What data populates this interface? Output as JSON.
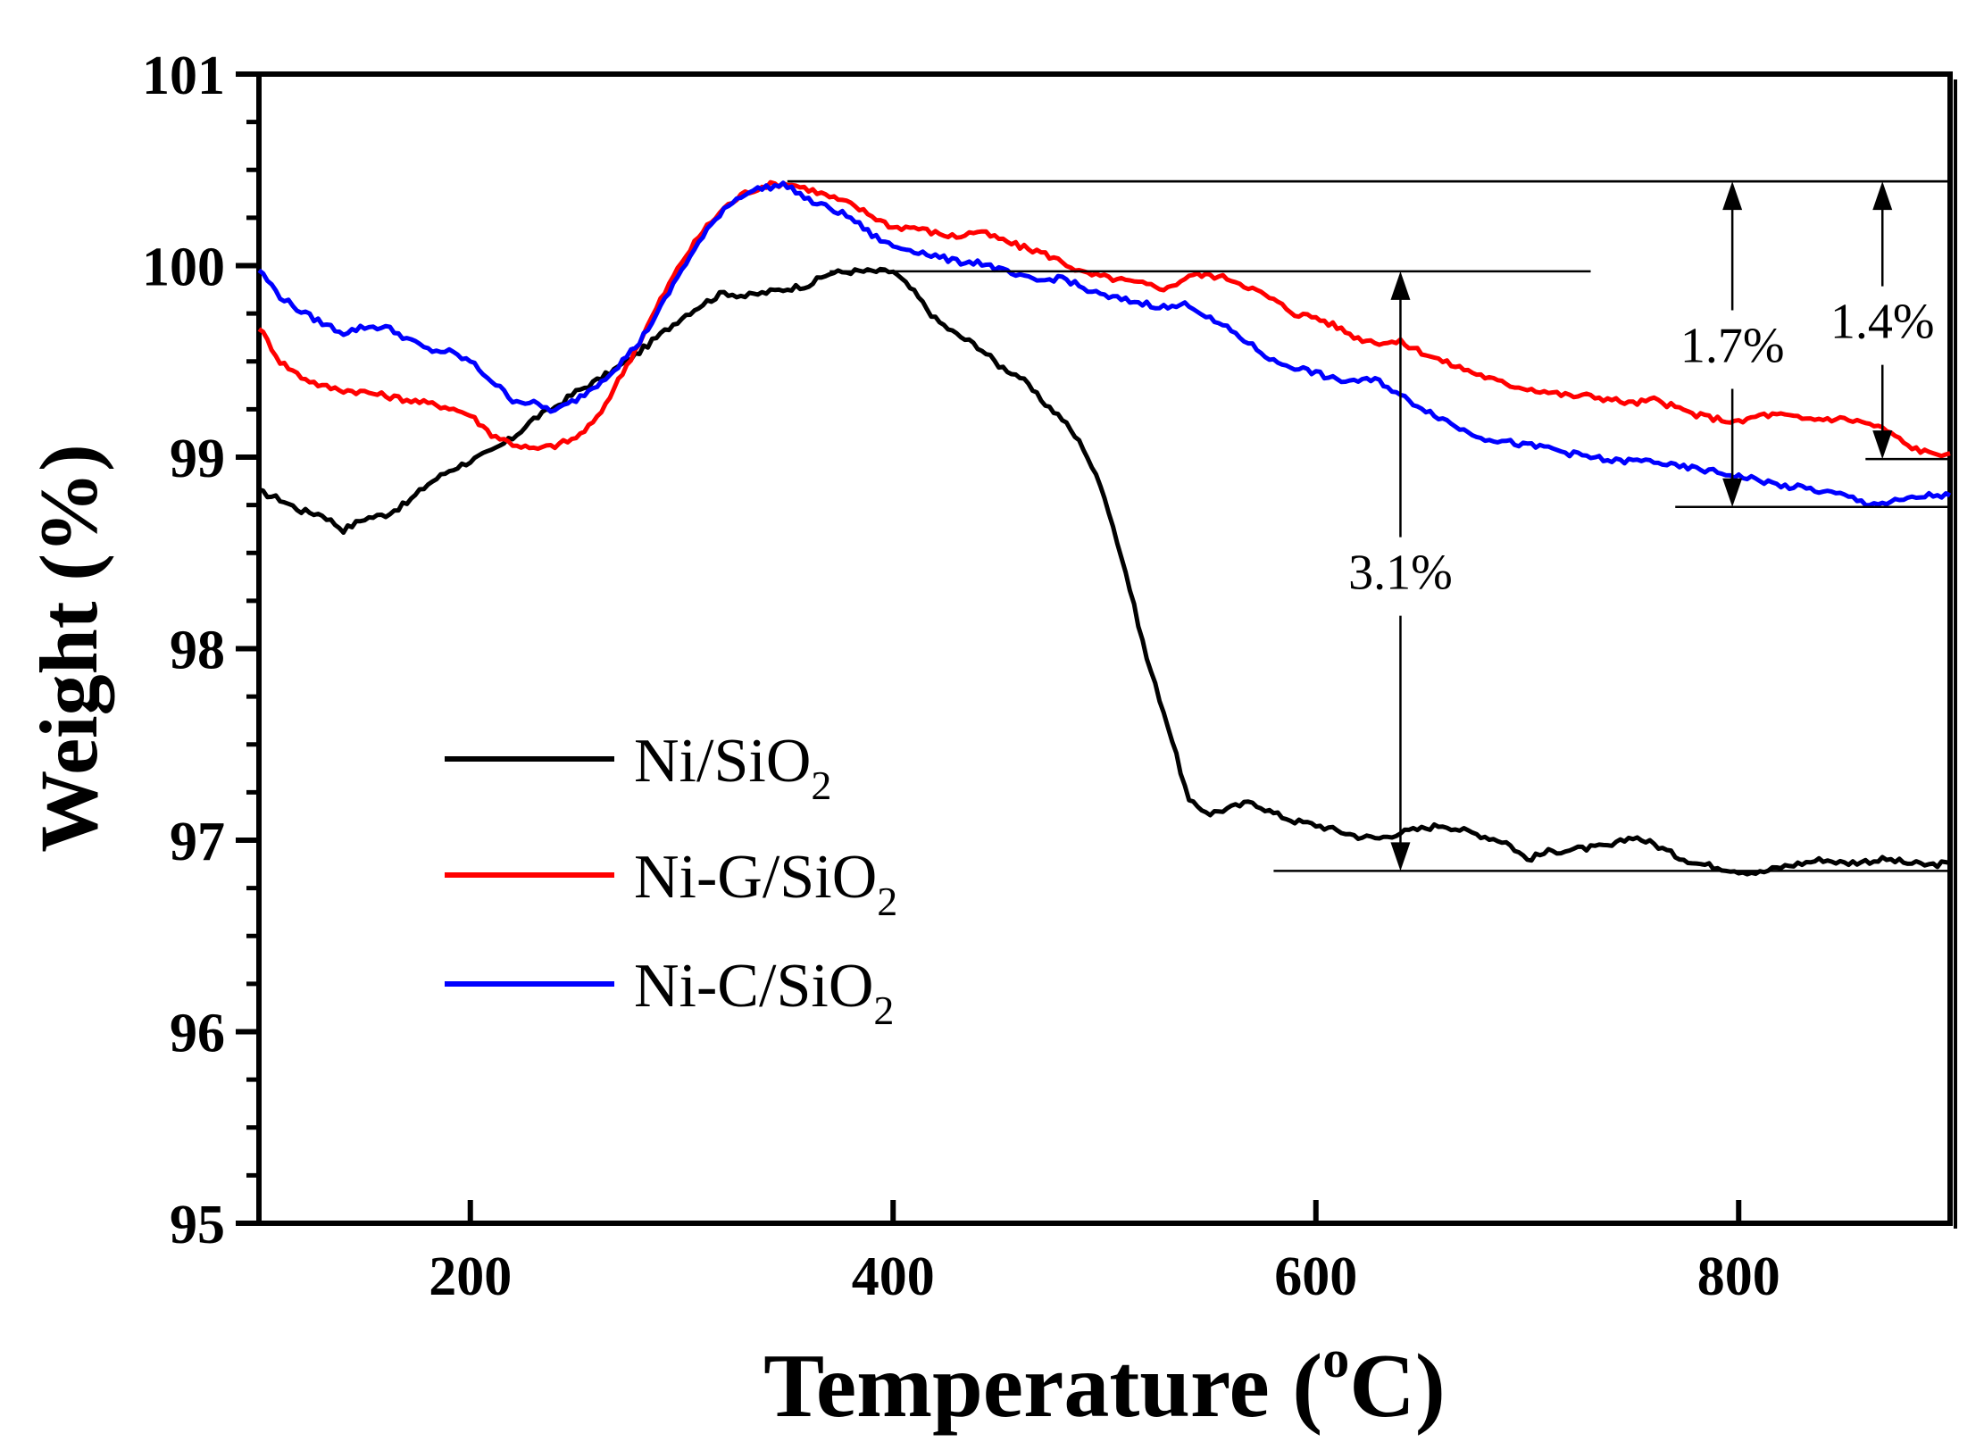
{
  "chart_data": {
    "type": "line",
    "title": "",
    "xlabel": "Temperature (",
    "xlabel_sup": "o",
    "xlabel_unit": "C)",
    "ylabel": "Weight (%)",
    "xlim": [
      100,
      900
    ],
    "ylim": [
      95,
      101
    ],
    "x_ticks": [
      200,
      400,
      600,
      800
    ],
    "x_tick_labels": [
      "200",
      "400",
      "600",
      "800"
    ],
    "y_ticks": [
      95,
      96,
      97,
      98,
      99,
      100,
      101
    ],
    "y_tick_labels": [
      "95",
      "96",
      "97",
      "98",
      "99",
      "100",
      "101"
    ],
    "grid": false,
    "legend_position": "lower-left",
    "series": [
      {
        "name": "Ni/SiO2",
        "label_main": "Ni/SiO",
        "label_sub": "2",
        "color": "#000000",
        "x": [
          100,
          110,
          120,
          130,
          140,
          150,
          160,
          170,
          180,
          190,
          200,
          210,
          220,
          230,
          240,
          250,
          260,
          270,
          280,
          290,
          300,
          310,
          320,
          330,
          340,
          350,
          360,
          370,
          380,
          390,
          400,
          410,
          420,
          430,
          440,
          450,
          460,
          470,
          480,
          490,
          500,
          510,
          520,
          530,
          540,
          550,
          560,
          570,
          580,
          590,
          600,
          610,
          620,
          630,
          640,
          650,
          660,
          670,
          680,
          690,
          700,
          710,
          720,
          730,
          740,
          750,
          760,
          770,
          780,
          790,
          800,
          810,
          820,
          830,
          840,
          850,
          860,
          870,
          880,
          890,
          900
        ],
        "y": [
          98.82,
          98.78,
          98.72,
          98.7,
          98.62,
          98.68,
          98.7,
          98.76,
          98.86,
          98.93,
          98.98,
          99.03,
          99.1,
          99.2,
          99.26,
          99.34,
          99.4,
          99.47,
          99.55,
          99.64,
          99.73,
          99.8,
          99.86,
          99.84,
          99.86,
          99.88,
          99.9,
          99.96,
          99.97,
          99.97,
          99.97,
          99.86,
          99.72,
          99.64,
          99.58,
          99.48,
          99.42,
          99.3,
          99.2,
          99.05,
          98.8,
          98.4,
          97.95,
          97.6,
          97.2,
          97.14,
          97.17,
          97.2,
          97.14,
          97.1,
          97.08,
          97.05,
          97.02,
          97.01,
          97.04,
          97.06,
          97.08,
          97.05,
          97.02,
          96.99,
          96.9,
          96.94,
          96.95,
          96.96,
          96.97,
          97.02,
          96.98,
          96.92,
          96.88,
          96.86,
          96.84,
          96.83,
          96.86,
          96.88,
          96.9,
          96.88,
          96.89,
          96.9,
          96.88,
          96.87,
          96.88
        ]
      },
      {
        "name": "Ni-G/SiO2",
        "label_main": "Ni-G/SiO",
        "label_sub": "2",
        "color": "#ff0000",
        "x": [
          100,
          110,
          120,
          130,
          140,
          150,
          160,
          170,
          180,
          190,
          200,
          210,
          220,
          230,
          240,
          250,
          260,
          270,
          280,
          290,
          300,
          310,
          320,
          330,
          340,
          350,
          360,
          370,
          380,
          390,
          400,
          410,
          420,
          430,
          440,
          450,
          460,
          470,
          480,
          490,
          500,
          510,
          520,
          530,
          540,
          550,
          560,
          570,
          580,
          590,
          600,
          610,
          620,
          630,
          640,
          650,
          660,
          670,
          680,
          690,
          700,
          710,
          720,
          730,
          740,
          750,
          760,
          770,
          780,
          790,
          800,
          810,
          820,
          830,
          840,
          850,
          860,
          870,
          880,
          890,
          900
        ],
        "y": [
          99.68,
          99.5,
          99.42,
          99.37,
          99.35,
          99.34,
          99.32,
          99.3,
          99.28,
          99.26,
          99.22,
          99.12,
          99.07,
          99.04,
          99.06,
          99.1,
          99.2,
          99.4,
          99.6,
          99.82,
          100.02,
          100.18,
          100.3,
          100.38,
          100.42,
          100.43,
          100.4,
          100.36,
          100.32,
          100.26,
          100.2,
          100.2,
          100.17,
          100.15,
          100.18,
          100.14,
          100.1,
          100.07,
          100.02,
          99.96,
          99.94,
          99.92,
          99.9,
          99.88,
          99.95,
          99.95,
          99.93,
          99.88,
          99.82,
          99.75,
          99.73,
          99.68,
          99.62,
          99.6,
          99.6,
          99.55,
          99.5,
          99.46,
          99.42,
          99.38,
          99.36,
          99.34,
          99.32,
          99.32,
          99.3,
          99.28,
          99.3,
          99.26,
          99.22,
          99.2,
          99.18,
          99.22,
          99.22,
          99.2,
          99.2,
          99.2,
          99.18,
          99.14,
          99.06,
          99.02,
          99.02
        ]
      },
      {
        "name": "Ni-C/SiO2",
        "label_main": "Ni-C/SiO",
        "label_sub": "2",
        "color": "#0000ff",
        "x": [
          100,
          110,
          120,
          130,
          140,
          150,
          160,
          170,
          180,
          190,
          200,
          210,
          220,
          230,
          240,
          250,
          260,
          270,
          280,
          290,
          300,
          310,
          320,
          330,
          340,
          350,
          360,
          370,
          380,
          390,
          400,
          410,
          420,
          430,
          440,
          450,
          460,
          470,
          480,
          490,
          500,
          510,
          520,
          530,
          540,
          550,
          560,
          570,
          580,
          590,
          600,
          610,
          620,
          630,
          640,
          650,
          660,
          670,
          680,
          690,
          700,
          710,
          720,
          730,
          740,
          750,
          760,
          770,
          780,
          790,
          800,
          810,
          820,
          830,
          840,
          850,
          860,
          870,
          880,
          890,
          900
        ],
        "y": [
          99.98,
          99.84,
          99.76,
          99.7,
          99.65,
          99.68,
          99.68,
          99.62,
          99.56,
          99.55,
          99.5,
          99.4,
          99.3,
          99.28,
          99.24,
          99.3,
          99.38,
          99.48,
          99.6,
          99.78,
          99.98,
          100.15,
          100.3,
          100.38,
          100.41,
          100.42,
          100.34,
          100.3,
          100.25,
          100.16,
          100.1,
          100.08,
          100.05,
          100.02,
          100.02,
          99.98,
          99.94,
          99.92,
          99.94,
          99.88,
          99.84,
          99.82,
          99.8,
          99.78,
          99.8,
          99.72,
          99.66,
          99.58,
          99.5,
          99.47,
          99.44,
          99.4,
          99.4,
          99.4,
          99.32,
          99.26,
          99.2,
          99.14,
          99.1,
          99.08,
          99.06,
          99.05,
          99.02,
          99.0,
          98.98,
          98.98,
          98.98,
          98.95,
          98.94,
          98.92,
          98.9,
          98.88,
          98.85,
          98.84,
          98.82,
          98.8,
          98.76,
          98.76,
          98.78,
          98.8,
          98.8
        ]
      }
    ],
    "annotations": [
      {
        "label": "3.1%",
        "x": 640,
        "y_top": 99.97,
        "y_bottom": 96.84,
        "line_top_x": [
          370,
          730
        ],
        "line_bottom_x": [
          580,
          900
        ]
      },
      {
        "label": "1.7%",
        "x": 797,
        "y_top": 100.44,
        "y_bottom": 98.74,
        "line_top_x": [
          350,
          900
        ],
        "line_bottom_x": [
          770,
          900
        ]
      },
      {
        "label": "1.4%",
        "x": 868,
        "y_top": 100.44,
        "y_bottom": 98.99,
        "line_top_x": [
          350,
          900
        ],
        "line_bottom_x": [
          860,
          900
        ]
      }
    ]
  }
}
